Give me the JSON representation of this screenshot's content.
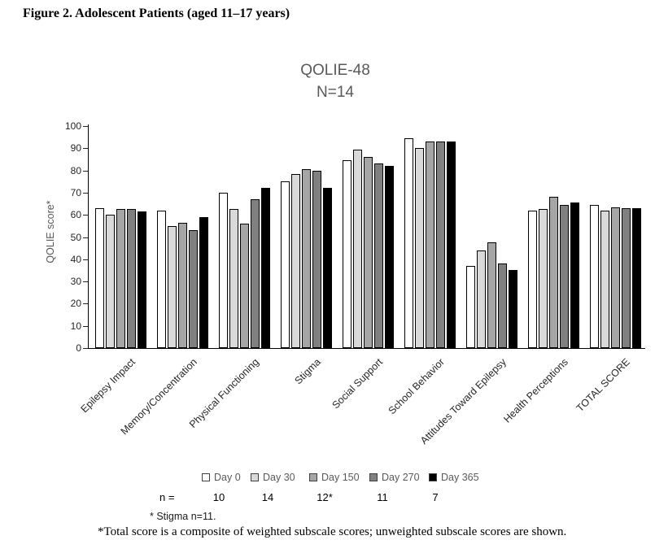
{
  "figure_title": "Figure 2. Adolescent Patients (aged 11–17 years)",
  "chart_data": {
    "type": "bar",
    "title": "QOLIE-48",
    "subtitle": "N=14",
    "ylabel": "QOLIE score*",
    "xlabel": "",
    "ylim": [
      0,
      100
    ],
    "ytick_step": 10,
    "grid": false,
    "legend_position": "bottom",
    "bar_border_color": "#000000",
    "categories": [
      "Epilepsy Impact",
      "Memory/Concentration",
      "Physical Functioning",
      "Stigma",
      "Social Support",
      "School Behavior",
      "Attitudes Toward Epilepsy",
      "Health Perceptions",
      "TOTAL SCORE"
    ],
    "series": [
      {
        "name": "Day 0",
        "color": "#ffffff",
        "values": [
          63,
          62,
          70,
          75,
          84.5,
          94.5,
          37,
          62,
          64.5
        ]
      },
      {
        "name": "Day 30",
        "color": "#d9d9d9",
        "values": [
          60,
          55,
          62.5,
          78.5,
          89.5,
          90,
          44,
          62.5,
          62
        ]
      },
      {
        "name": "Day 150",
        "color": "#a6a6a6",
        "values": [
          62.5,
          56.5,
          56,
          80.5,
          86,
          93,
          47.5,
          68,
          63.5
        ]
      },
      {
        "name": "Day 270",
        "color": "#808080",
        "values": [
          62.5,
          53,
          67,
          80,
          83,
          93,
          38,
          64.5,
          63
        ]
      },
      {
        "name": "Day 365",
        "color": "#000000",
        "values": [
          61.5,
          59,
          72,
          72,
          82,
          93,
          35,
          65.5,
          63
        ]
      }
    ]
  },
  "n_row": {
    "label": "n =",
    "values": [
      "10",
      "14",
      "12*",
      "11",
      "7"
    ]
  },
  "footnotes": {
    "stigma": "* Stigma n=11.",
    "total": "*Total score is a composite of weighted subscale scores; unweighted subscale scores are shown."
  }
}
